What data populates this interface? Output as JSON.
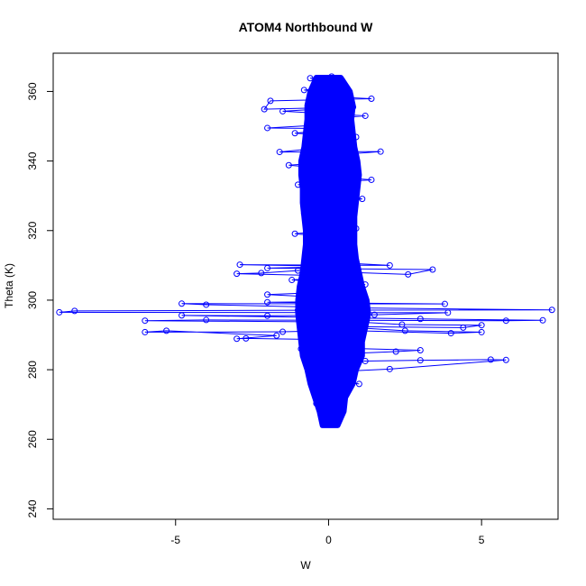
{
  "chart_data": {
    "type": "scatter",
    "title": "ATOM4 Northbound W",
    "xlabel": "W",
    "ylabel": "Theta (K)",
    "xlim": [
      -9,
      7.5
    ],
    "ylim": [
      237,
      371
    ],
    "x_ticks": [
      -5,
      0,
      5
    ],
    "y_ticks": [
      240,
      260,
      280,
      300,
      320,
      340,
      360
    ],
    "grid": false,
    "legend": "none",
    "series": [
      {
        "color": "#0000ff",
        "style": "line+open-circle",
        "points": [
          [
            -0.1,
            264.3
          ],
          [
            0.0,
            264.6
          ],
          [
            0.05,
            265.1
          ],
          [
            -0.15,
            264.8
          ],
          [
            0.2,
            265.6
          ],
          [
            0.3,
            266.5
          ],
          [
            0.35,
            268.1
          ],
          [
            0.1,
            267.6
          ],
          [
            -0.2,
            269.6
          ],
          [
            -0.4,
            270.3
          ],
          [
            0.2,
            272.4
          ],
          [
            -0.3,
            274.6
          ],
          [
            0.4,
            276.5
          ],
          [
            1.0,
            275.9
          ],
          [
            -0.5,
            277.8
          ],
          [
            0.6,
            279.6
          ],
          [
            2.0,
            280.2
          ],
          [
            5.8,
            282.8
          ],
          [
            5.3,
            282.9
          ],
          [
            3.0,
            282.7
          ],
          [
            1.2,
            282.5
          ],
          [
            -0.6,
            283.5
          ],
          [
            0.5,
            284.6
          ],
          [
            2.2,
            285.2
          ],
          [
            3.0,
            285.6
          ],
          [
            0.8,
            286.1
          ],
          [
            -0.9,
            286.0
          ],
          [
            1.0,
            287.7
          ],
          [
            0.2,
            288.6
          ],
          [
            -2.7,
            289.0
          ],
          [
            -3.0,
            288.9
          ],
          [
            -1.7,
            289.8
          ],
          [
            -5.3,
            291.2
          ],
          [
            -6.0,
            290.8
          ],
          [
            -1.5,
            290.9
          ],
          [
            0.5,
            291.3
          ],
          [
            4.0,
            290.5
          ],
          [
            5.0,
            290.8
          ],
          [
            2.5,
            291.2
          ],
          [
            0.3,
            292.4
          ],
          [
            4.4,
            292.1
          ],
          [
            5.0,
            292.8
          ],
          [
            2.4,
            293.0
          ],
          [
            1.2,
            293.6
          ],
          [
            -0.8,
            293.8
          ],
          [
            -6.0,
            294.1
          ],
          [
            -4.0,
            294.3
          ],
          [
            5.8,
            294.1
          ],
          [
            7.0,
            294.2
          ],
          [
            3.0,
            294.6
          ],
          [
            -4.8,
            295.6
          ],
          [
            -2.0,
            295.5
          ],
          [
            1.5,
            295.8
          ],
          [
            3.9,
            296.4
          ],
          [
            -8.8,
            296.5
          ],
          [
            -8.3,
            296.9
          ],
          [
            -1.0,
            297.1
          ],
          [
            7.3,
            297.2
          ],
          [
            0.5,
            297.8
          ],
          [
            -4.0,
            298.7
          ],
          [
            -4.8,
            299.0
          ],
          [
            3.8,
            298.9
          ],
          [
            -2.0,
            299.4
          ],
          [
            0.8,
            299.6
          ],
          [
            -0.6,
            301.0
          ],
          [
            -2.0,
            301.6
          ],
          [
            0.3,
            302.4
          ],
          [
            -0.4,
            303.8
          ],
          [
            1.2,
            304.5
          ],
          [
            -1.2,
            305.8
          ],
          [
            0.5,
            306.9
          ],
          [
            -3.0,
            307.6
          ],
          [
            -2.2,
            307.8
          ],
          [
            -1.0,
            308.5
          ],
          [
            2.6,
            307.4
          ],
          [
            3.4,
            308.8
          ],
          [
            -2.0,
            309.2
          ],
          [
            0.6,
            309.7
          ],
          [
            -2.9,
            310.2
          ],
          [
            2.0,
            310.0
          ],
          [
            -0.5,
            311.1
          ],
          [
            0.4,
            312.4
          ],
          [
            -0.7,
            313.6
          ],
          [
            0.8,
            315.0
          ],
          [
            -0.6,
            316.4
          ],
          [
            0.3,
            317.9
          ],
          [
            -1.1,
            319.1
          ],
          [
            0.9,
            320.6
          ],
          [
            -0.3,
            321.8
          ],
          [
            0.6,
            323.4
          ],
          [
            -0.8,
            324.9
          ],
          [
            0.2,
            326.5
          ],
          [
            -0.5,
            327.7
          ],
          [
            1.1,
            329.1
          ],
          [
            -0.4,
            330.6
          ],
          [
            0.7,
            331.9
          ],
          [
            -1.0,
            333.2
          ],
          [
            1.4,
            334.6
          ],
          [
            -0.6,
            336.0
          ],
          [
            0.5,
            337.4
          ],
          [
            -1.3,
            338.8
          ],
          [
            0.8,
            340.1
          ],
          [
            -0.3,
            341.4
          ],
          [
            1.7,
            342.7
          ],
          [
            -1.6,
            342.6
          ],
          [
            0.2,
            344.2
          ],
          [
            -0.7,
            345.5
          ],
          [
            0.9,
            346.9
          ],
          [
            -1.1,
            348.0
          ],
          [
            0.4,
            349.3
          ],
          [
            -2.0,
            349.5
          ],
          [
            0.6,
            350.8
          ],
          [
            -0.2,
            352.1
          ],
          [
            1.2,
            353.0
          ],
          [
            -1.5,
            354.3
          ],
          [
            0.8,
            355.5
          ],
          [
            -2.1,
            354.9
          ],
          [
            -1.9,
            357.3
          ],
          [
            1.4,
            357.9
          ],
          [
            -0.5,
            358.7
          ],
          [
            0.3,
            359.6
          ],
          [
            -0.8,
            360.4
          ],
          [
            0.5,
            361.3
          ],
          [
            -0.2,
            362.2
          ],
          [
            0.4,
            363.1
          ],
          [
            -0.6,
            363.8
          ],
          [
            0.1,
            364.3
          ]
        ]
      }
    ],
    "core_band": [
      [
        264,
        -0.2,
        0.3
      ],
      [
        268,
        -0.3,
        0.5
      ],
      [
        272,
        -0.45,
        0.55
      ],
      [
        276,
        -0.6,
        0.8
      ],
      [
        280,
        -0.7,
        0.9
      ],
      [
        284,
        -0.85,
        1.1
      ],
      [
        288,
        -0.9,
        1.1
      ],
      [
        292,
        -0.95,
        1.2
      ],
      [
        296,
        -1.0,
        1.3
      ],
      [
        300,
        -1.0,
        1.25
      ],
      [
        304,
        -0.95,
        1.1
      ],
      [
        308,
        -0.85,
        1.0
      ],
      [
        312,
        -0.8,
        0.9
      ],
      [
        316,
        -0.75,
        0.85
      ],
      [
        320,
        -0.75,
        0.85
      ],
      [
        324,
        -0.8,
        0.85
      ],
      [
        328,
        -0.85,
        0.9
      ],
      [
        332,
        -0.85,
        0.95
      ],
      [
        336,
        -0.9,
        1.0
      ],
      [
        340,
        -0.9,
        0.95
      ],
      [
        344,
        -0.8,
        0.85
      ],
      [
        348,
        -0.75,
        0.8
      ],
      [
        352,
        -0.7,
        0.75
      ],
      [
        356,
        -0.7,
        0.8
      ],
      [
        360,
        -0.6,
        0.7
      ],
      [
        364,
        -0.4,
        0.4
      ]
    ]
  }
}
